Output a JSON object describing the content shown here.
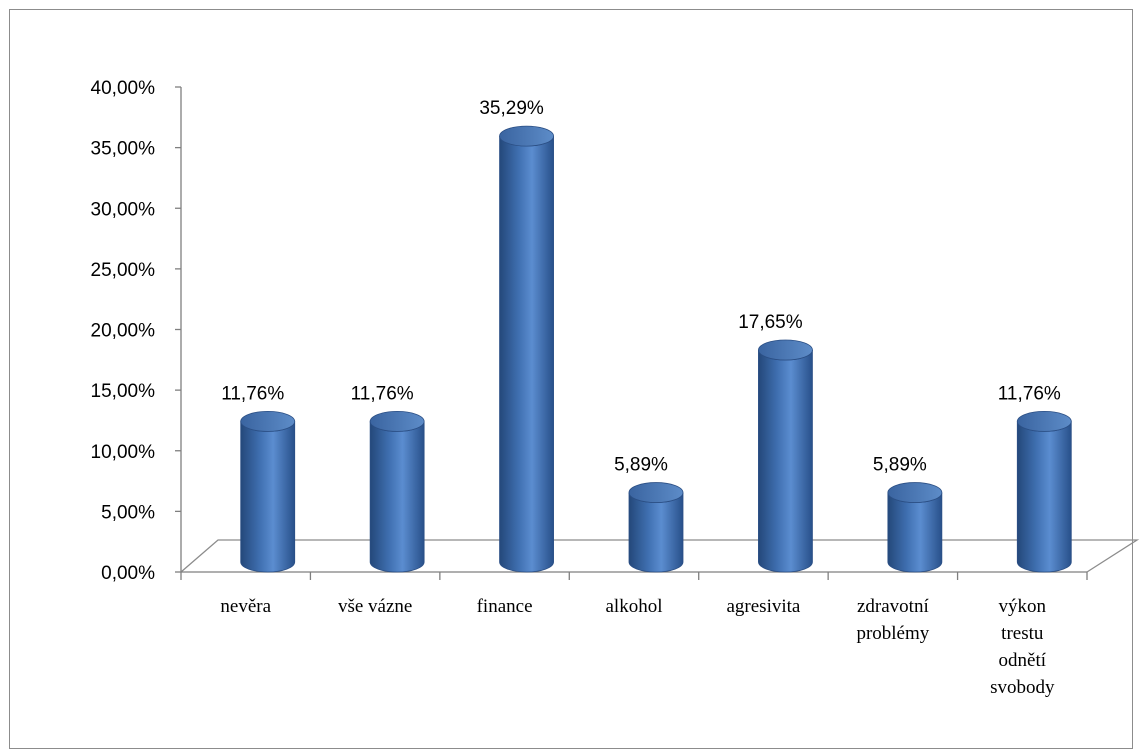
{
  "chart_data": {
    "type": "bar",
    "style": "3d-cylinder",
    "categories": [
      [
        "nevěra"
      ],
      [
        "vše vázne"
      ],
      [
        "finance"
      ],
      [
        "alkohol"
      ],
      [
        "agresivita"
      ],
      [
        "zdravotní",
        "problémy"
      ],
      [
        "výkon",
        "trestu",
        "odnětí",
        "svobody"
      ]
    ],
    "values": [
      11.76,
      11.76,
      35.29,
      5.89,
      17.65,
      5.89,
      11.76
    ],
    "value_labels": [
      "11,76%",
      "11,76%",
      "35,29%",
      "5,89%",
      "17,65%",
      "5,89%",
      "11,76%"
    ],
    "y_ticks": [
      "0,00%",
      "5,00%",
      "10,00%",
      "15,00%",
      "20,00%",
      "25,00%",
      "30,00%",
      "35,00%",
      "40,00%"
    ],
    "ylim": [
      0,
      40
    ],
    "bar_color": "#4f81bd",
    "grid": false,
    "legend": "none"
  }
}
